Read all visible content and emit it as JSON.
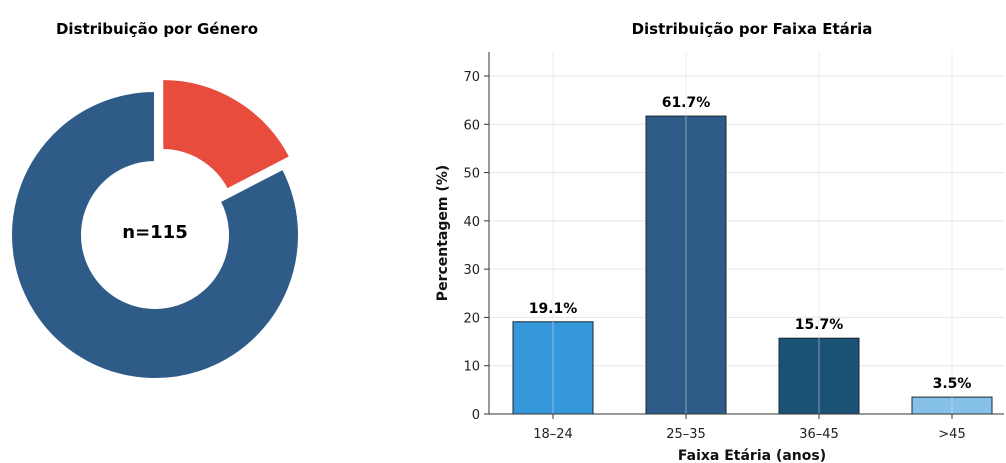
{
  "chart_data": [
    {
      "type": "pie",
      "title": "Distribuição por Género",
      "center_label": "n=115",
      "donut": true,
      "slices": [
        {
          "value": 82.6,
          "color": "#2e5b88"
        },
        {
          "value": 17.4,
          "color": "#e74c3c",
          "exploded": true
        }
      ]
    },
    {
      "type": "bar",
      "title": "Distribuição por Faixa Etária",
      "xlabel": "Faixa Etária (anos)",
      "ylabel": "Percentagem (%)",
      "ylim": [
        0,
        75
      ],
      "yticks": [
        "0",
        "10",
        "20",
        "30",
        "40",
        "50",
        "60",
        "70"
      ],
      "grid": true,
      "categories": [
        "18–24",
        "25–35",
        "36–45",
        ">45"
      ],
      "values": [
        19.1,
        61.7,
        15.7,
        3.5
      ],
      "value_labels": [
        "19.1%",
        "61.7%",
        "15.7%",
        "3.5%"
      ],
      "colors": [
        "#3498db",
        "#2e5b88",
        "#1a5276",
        "#85c1e9"
      ]
    }
  ]
}
